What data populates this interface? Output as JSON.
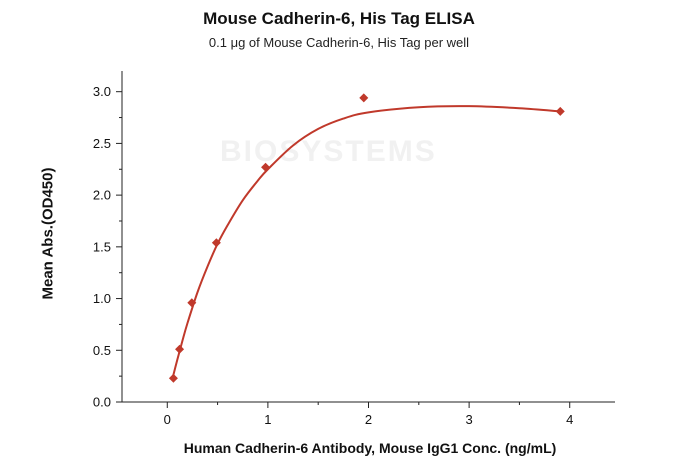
{
  "title": "Mouse Cadherin-6, His Tag ELISA",
  "subtitle": "0.1 μg of Mouse Cadherin-6, His Tag per well",
  "watermark": "BIOSYSTEMS",
  "colors": {
    "series": "#c0392b",
    "axis": "#222222"
  },
  "chart_data": {
    "type": "scatter",
    "title": "Mouse Cadherin-6, His Tag ELISA",
    "subtitle": "0.1 μg of Mouse Cadherin-6, His Tag per well",
    "xlabel": "Human Cadherin-6 Antibody, Mouse IgG1 Conc. (ng/mL)",
    "ylabel": "Mean Abs.(OD450)",
    "xlim": [
      -0.45,
      4.45
    ],
    "ylim": [
      0,
      3.2
    ],
    "x_ticks": [
      0,
      1,
      2,
      3,
      4
    ],
    "y_ticks": [
      0.0,
      0.5,
      1.0,
      1.5,
      2.0,
      2.5,
      3.0
    ],
    "x_tick_labels": [
      "0",
      "1",
      "2",
      "3",
      "4"
    ],
    "y_tick_labels": [
      "0.0",
      "0.5",
      "1.0",
      "1.5",
      "2.0",
      "2.5",
      "3.0"
    ],
    "grid": false,
    "series": [
      {
        "x": [
          0.061,
          0.122,
          0.244,
          0.488,
          0.977,
          1.953,
          3.906
        ],
        "y": [
          0.23,
          0.51,
          0.96,
          1.54,
          2.27,
          2.94,
          2.81
        ],
        "marker": "diamond",
        "fit_curve": [
          [
            0.05,
            0.22
          ],
          [
            0.1,
            0.41
          ],
          [
            0.15,
            0.59
          ],
          [
            0.2,
            0.76
          ],
          [
            0.3,
            1.06
          ],
          [
            0.4,
            1.31
          ],
          [
            0.5,
            1.53
          ],
          [
            0.6,
            1.71
          ],
          [
            0.75,
            1.95
          ],
          [
            0.9,
            2.14
          ],
          [
            1.0,
            2.25
          ],
          [
            1.25,
            2.48
          ],
          [
            1.5,
            2.64
          ],
          [
            1.75,
            2.74
          ],
          [
            2.0,
            2.8
          ],
          [
            2.5,
            2.85
          ],
          [
            3.0,
            2.86
          ],
          [
            3.5,
            2.84
          ],
          [
            3.9,
            2.81
          ]
        ]
      }
    ]
  }
}
